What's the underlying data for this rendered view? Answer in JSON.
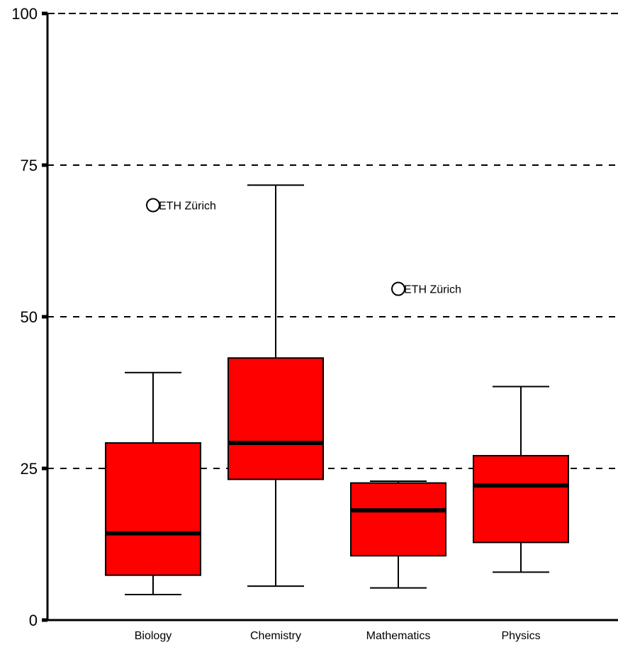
{
  "chart_data": {
    "type": "boxplot",
    "title": "",
    "xlabel": "",
    "ylabel": "",
    "ylim": [
      0,
      100
    ],
    "yticks": [
      0,
      25,
      50,
      75,
      100
    ],
    "yticks_labels": [
      "0",
      "25",
      "50",
      "75",
      "100"
    ],
    "grid": "horizontal dashed at 25, 50, 75, 100",
    "colors": {
      "box_fill": "#ff0000",
      "stroke": "#000000",
      "background": "#ffffff"
    },
    "categories": [
      "Biology",
      "Chemistry",
      "Mathematics",
      "Physics"
    ],
    "boxes": [
      {
        "category": "Biology",
        "min": 4.2,
        "q1": 7.4,
        "median": 14.3,
        "q3": 29.2,
        "max": 40.8,
        "outliers": [
          {
            "value": 68.4,
            "label": "ETH Zürich"
          }
        ]
      },
      {
        "category": "Chemistry",
        "min": 5.6,
        "q1": 23.2,
        "median": 29.2,
        "q3": 43.2,
        "max": 71.7,
        "outliers": []
      },
      {
        "category": "Mathematics",
        "min": 5.3,
        "q1": 10.6,
        "median": 18.1,
        "q3": 22.6,
        "max": 22.9,
        "outliers": [
          {
            "value": 54.6,
            "label": "ETH Zürich"
          }
        ]
      },
      {
        "category": "Physics",
        "min": 7.9,
        "q1": 12.8,
        "median": 22.2,
        "q3": 27.1,
        "max": 38.5,
        "outliers": []
      }
    ]
  }
}
